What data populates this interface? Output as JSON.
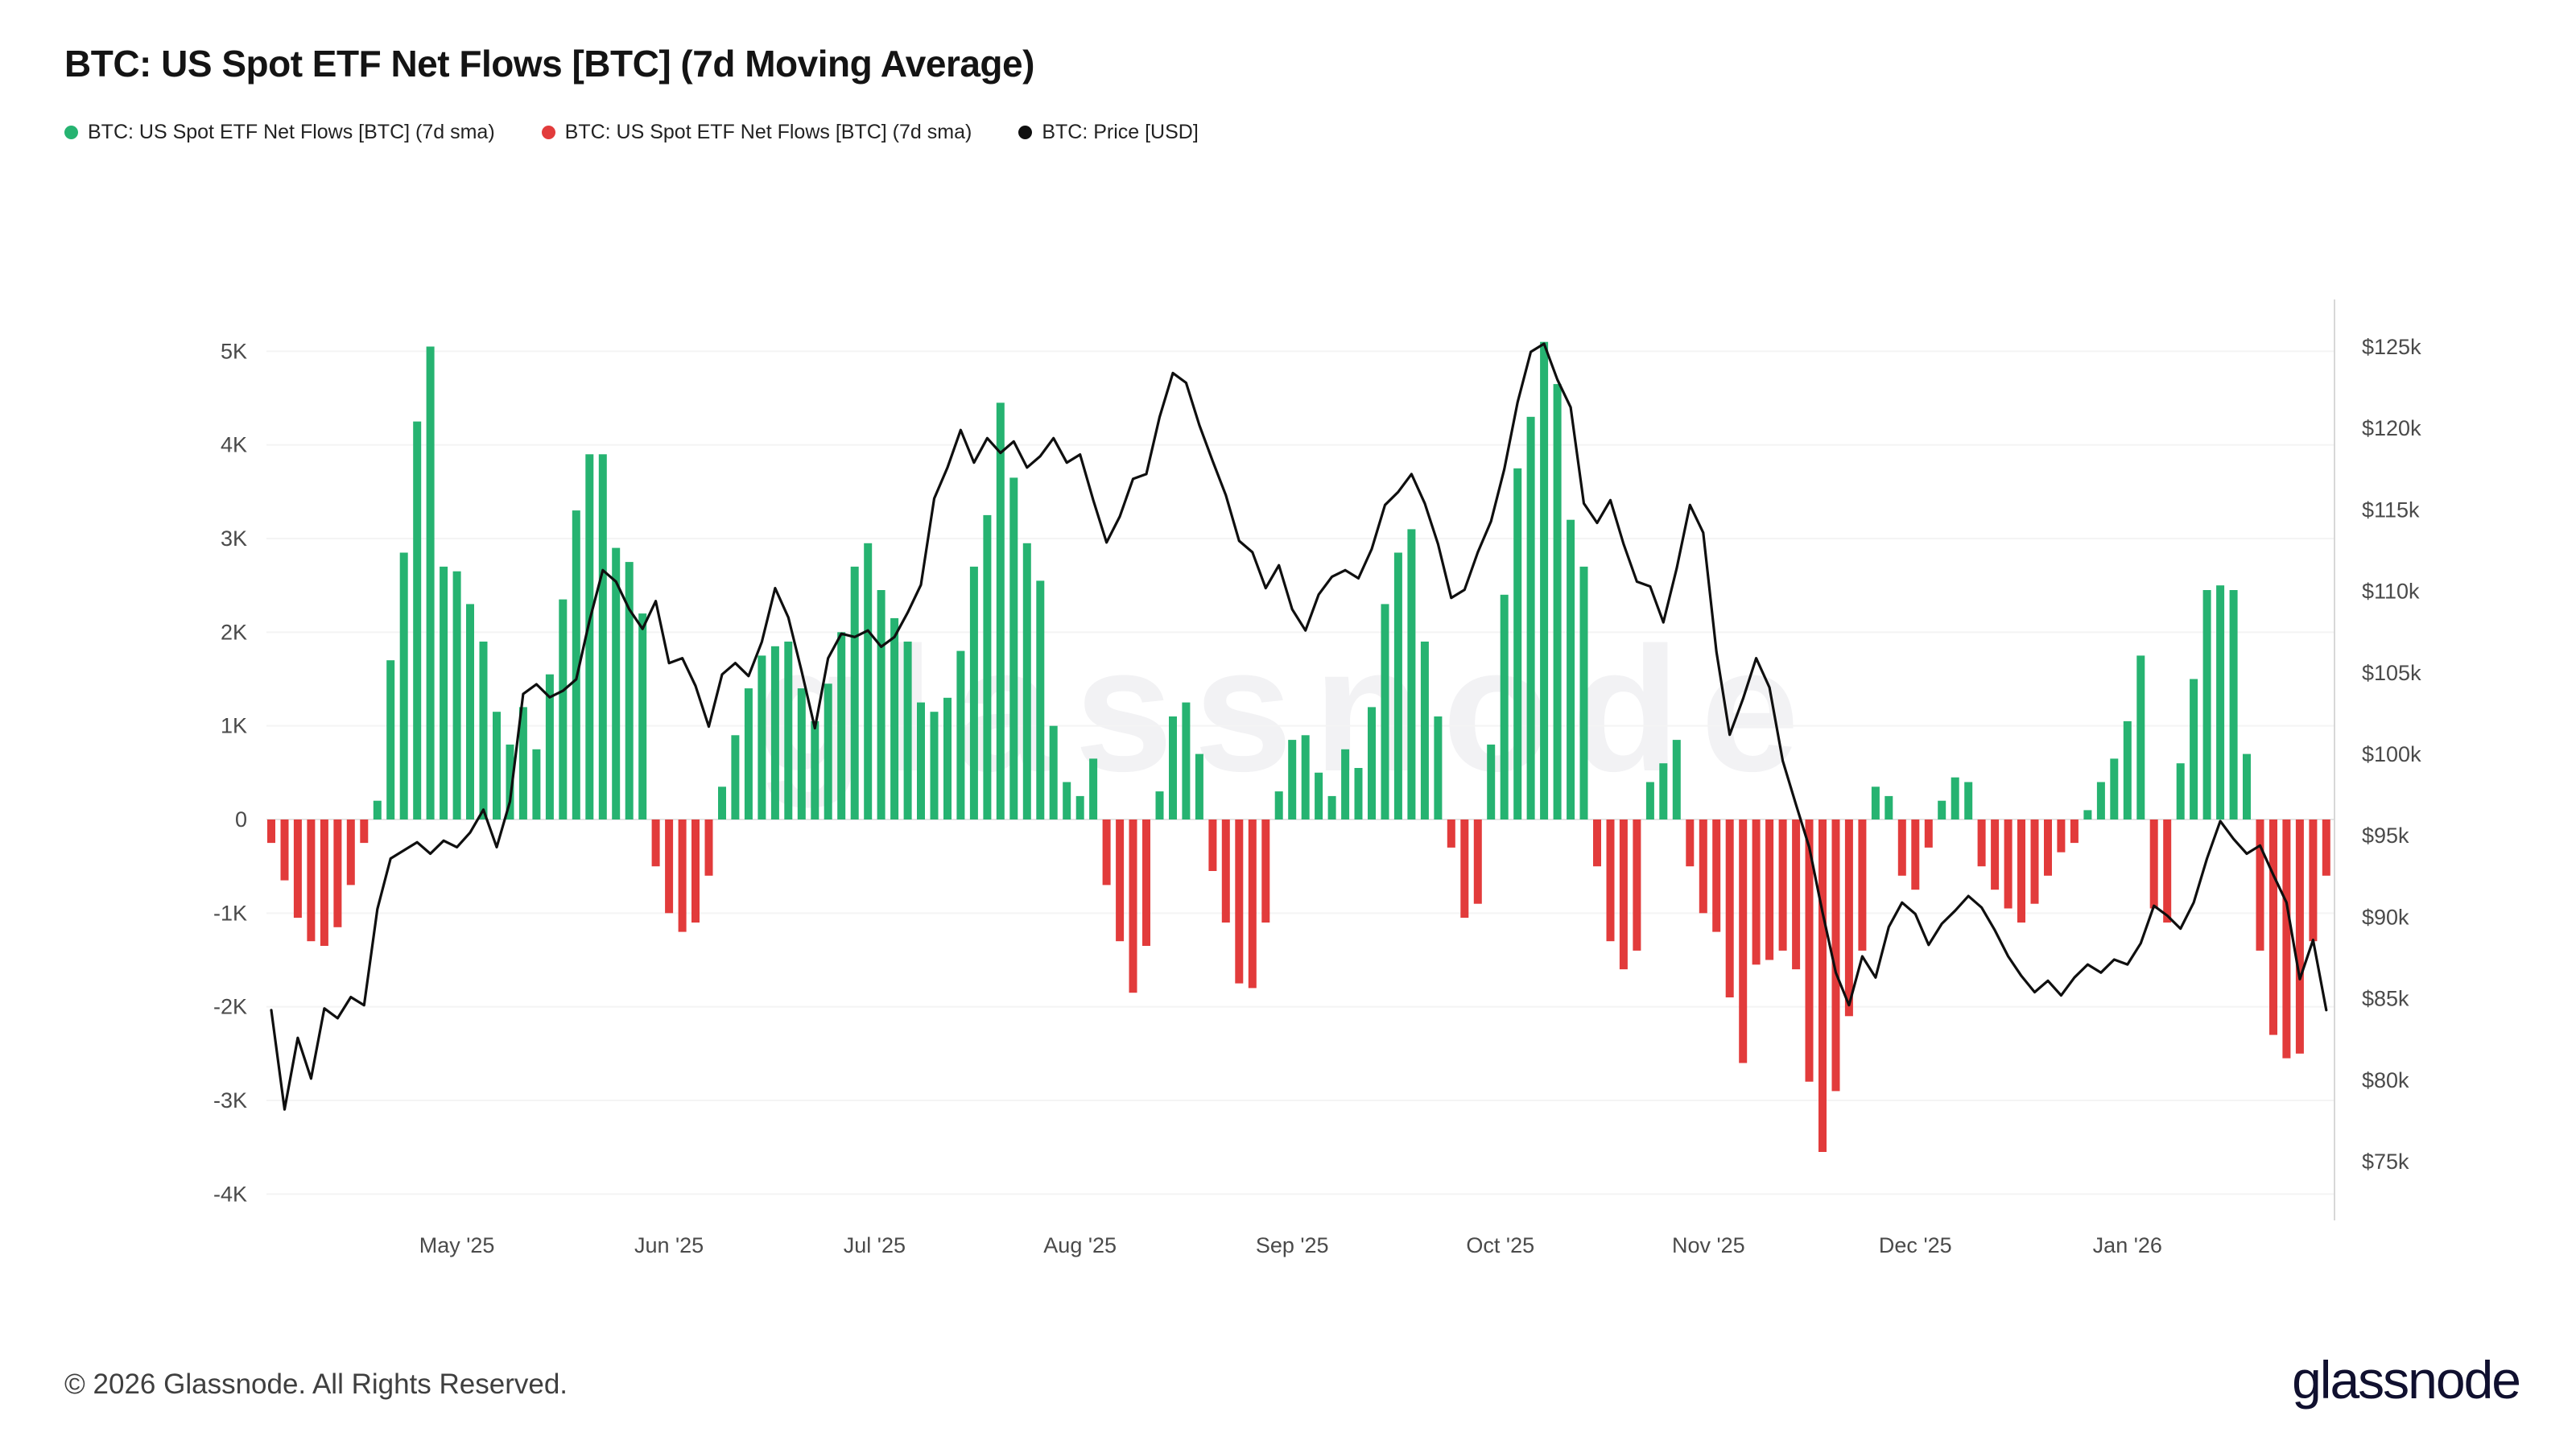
{
  "header": {
    "title": "BTC: US Spot ETF Net Flows [BTC] (7d Moving Average)"
  },
  "legend": {
    "items": [
      {
        "label": "BTC: US Spot ETF Net Flows [BTC] (7d sma)",
        "color": "#26b371"
      },
      {
        "label": "BTC: US Spot ETF Net Flows [BTC] (7d sma)",
        "color": "#e23b3b"
      },
      {
        "label": "BTC: Price [USD]",
        "color": "#0f0f0f"
      }
    ]
  },
  "watermark": {
    "text": "glassnode"
  },
  "footer": {
    "copyright": "© 2026 Glassnode. All Rights Reserved.",
    "brand": "glassnode"
  },
  "chart_data": {
    "type": "bar",
    "title": "BTC: US Spot ETF Net Flows [BTC] (7d Moving Average)",
    "grid": "horizontal-faint",
    "legend_position": "top-left",
    "x_axis": {
      "ticks": [
        {
          "label": "May '25",
          "index": 14
        },
        {
          "label": "Jun '25",
          "index": 30
        },
        {
          "label": "Jul '25",
          "index": 45.5
        },
        {
          "label": "Aug '25",
          "index": 61
        },
        {
          "label": "Sep '25",
          "index": 77
        },
        {
          "label": "Oct '25",
          "index": 92.7
        },
        {
          "label": "Nov '25",
          "index": 108.4
        },
        {
          "label": "Dec '25",
          "index": 124
        },
        {
          "label": "Jan '26",
          "index": 140
        }
      ]
    },
    "y_axis_left": {
      "unit": "BTC net flow (7d sma)",
      "min": -4000,
      "max": 5000,
      "ticks": [
        {
          "label": "5K",
          "value": 5000
        },
        {
          "label": "4K",
          "value": 4000
        },
        {
          "label": "3K",
          "value": 3000
        },
        {
          "label": "2K",
          "value": 2000
        },
        {
          "label": "1K",
          "value": 1000
        },
        {
          "label": "0",
          "value": 0
        },
        {
          "label": "-1K",
          "value": -1000
        },
        {
          "label": "-2K",
          "value": -2000
        },
        {
          "label": "-3K",
          "value": -3000
        },
        {
          "label": "-4K",
          "value": -4000
        }
      ]
    },
    "y_axis_right": {
      "unit": "USD thousands",
      "min": 75,
      "max": 125,
      "ticks": [
        {
          "label": "$125k",
          "value": 125
        },
        {
          "label": "$120k",
          "value": 120
        },
        {
          "label": "$115k",
          "value": 115
        },
        {
          "label": "$110k",
          "value": 110
        },
        {
          "label": "$105k",
          "value": 105
        },
        {
          "label": "$100k",
          "value": 100
        },
        {
          "label": "$95k",
          "value": 95
        },
        {
          "label": "$90k",
          "value": 90
        },
        {
          "label": "$85k",
          "value": 85
        },
        {
          "label": "$80k",
          "value": 80
        },
        {
          "label": "$75k",
          "value": 75
        }
      ]
    },
    "series": [
      {
        "name": "BTC: US Spot ETF Net Flows [BTC] (7d sma)",
        "type": "bar",
        "unit": "BTC",
        "color_positive": "#26b371",
        "color_negative": "#e23b3b",
        "values": [
          -250,
          -650,
          -1050,
          -1300,
          -1350,
          -1150,
          -700,
          -250,
          200,
          1700,
          2850,
          4250,
          5050,
          2700,
          2650,
          2300,
          1900,
          1150,
          800,
          1200,
          750,
          1550,
          2350,
          3300,
          3900,
          3900,
          2900,
          2750,
          2200,
          -500,
          -1000,
          -1200,
          -1100,
          -600,
          350,
          900,
          1400,
          1750,
          1850,
          1900,
          1400,
          1050,
          1450,
          2000,
          2700,
          2950,
          2450,
          2150,
          1900,
          1250,
          1150,
          1300,
          1800,
          2700,
          3250,
          4450,
          3650,
          2950,
          2550,
          1000,
          400,
          250,
          650,
          -700,
          -1300,
          -1850,
          -1350,
          300,
          1100,
          1250,
          700,
          -550,
          -1100,
          -1750,
          -1800,
          -1100,
          300,
          850,
          900,
          500,
          250,
          750,
          550,
          1200,
          2300,
          2850,
          3100,
          1900,
          1100,
          -300,
          -1050,
          -900,
          800,
          2400,
          3750,
          4300,
          5100,
          4650,
          3200,
          2700,
          -500,
          -1300,
          -1600,
          -1400,
          400,
          600,
          850,
          -500,
          -1000,
          -1200,
          -1900,
          -2600,
          -1550,
          -1500,
          -1400,
          -1600,
          -2800,
          -3550,
          -2900,
          -2100,
          -1400,
          350,
          250,
          -600,
          -750,
          -300,
          200,
          450,
          400,
          -500,
          -750,
          -950,
          -1100,
          -900,
          -600,
          -350,
          -250,
          100,
          400,
          650,
          1050,
          1750,
          -950,
          -1100,
          600,
          1500,
          2450,
          2500,
          2450,
          700,
          -1400,
          -2300,
          -2550,
          -2500,
          -1300,
          -600
        ]
      },
      {
        "name": "BTC: Price [USD]",
        "type": "line",
        "unit": "USD (thousands)",
        "color": "#0f0f0f",
        "values": [
          84.3,
          78.2,
          82.6,
          80.1,
          84.4,
          83.8,
          85.1,
          84.6,
          90.5,
          93.6,
          94.1,
          94.6,
          93.9,
          94.7,
          94.3,
          95.2,
          96.6,
          94.3,
          97.1,
          103.7,
          104.3,
          103.5,
          103.9,
          104.6,
          108.2,
          111.3,
          110.6,
          108.9,
          107.7,
          109.4,
          105.6,
          105.9,
          104.2,
          101.7,
          104.9,
          105.6,
          104.8,
          106.9,
          110.2,
          108.4,
          105.1,
          101.6,
          105.9,
          107.4,
          107.2,
          107.6,
          106.6,
          107.2,
          108.7,
          110.4,
          115.7,
          117.6,
          119.9,
          117.9,
          119.4,
          118.5,
          119.2,
          117.6,
          118.3,
          119.4,
          117.9,
          118.4,
          115.6,
          113.0,
          114.6,
          116.9,
          117.2,
          120.7,
          123.4,
          122.8,
          120.2,
          118.0,
          115.9,
          113.1,
          112.4,
          110.2,
          111.6,
          108.9,
          107.6,
          109.8,
          110.9,
          111.3,
          110.8,
          112.6,
          115.3,
          116.1,
          117.2,
          115.4,
          112.9,
          109.6,
          110.1,
          112.4,
          114.3,
          117.5,
          121.6,
          124.7,
          125.2,
          123.0,
          121.3,
          115.4,
          114.2,
          115.6,
          112.9,
          110.6,
          110.3,
          108.1,
          111.4,
          115.3,
          113.6,
          106.3,
          101.2,
          103.4,
          105.9,
          104.1,
          99.6,
          96.9,
          94.3,
          90.3,
          86.6,
          84.6,
          87.6,
          86.3,
          89.4,
          90.9,
          90.2,
          88.3,
          89.6,
          90.4,
          91.3,
          90.6,
          89.2,
          87.6,
          86.4,
          85.4,
          86.1,
          85.2,
          86.3,
          87.1,
          86.6,
          87.4,
          87.1,
          88.4,
          90.7,
          90.1,
          89.3,
          90.9,
          93.6,
          95.9,
          94.8,
          93.9,
          94.4,
          92.6,
          90.9,
          86.2,
          88.6,
          84.3
        ]
      }
    ]
  }
}
